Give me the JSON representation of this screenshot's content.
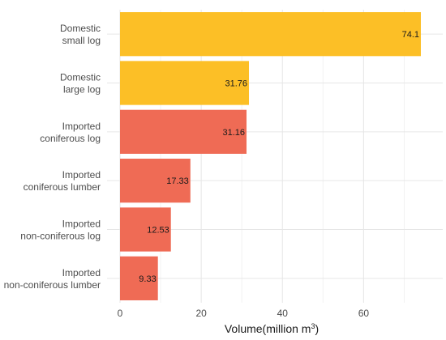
{
  "chart_data": {
    "type": "bar",
    "orientation": "horizontal",
    "categories": [
      [
        "Domestic",
        "small log"
      ],
      [
        "Domestic",
        "large log"
      ],
      [
        "Imported",
        "coniferous log"
      ],
      [
        "Imported",
        "coniferous lumber"
      ],
      [
        "Imported",
        "non-coniferous log"
      ],
      [
        "Imported",
        "non-coniferous lumber"
      ]
    ],
    "values": [
      74.1,
      31.76,
      31.16,
      17.33,
      12.53,
      9.33
    ],
    "value_labels": [
      "74.1",
      "31.76",
      "31.16",
      "17.33",
      "12.53",
      "9.33"
    ],
    "colors": [
      "#FCBF26",
      "#FCBF26",
      "#EF6B55",
      "#EF6B55",
      "#EF6B55",
      "#EF6B55"
    ],
    "xlabel": "Volume(million m",
    "xlabel_superscript": "3",
    "xlabel_close": ")",
    "xticks": [
      0,
      20,
      40,
      60
    ],
    "xlim": [
      0,
      77.8
    ],
    "grid": true,
    "legend": "none"
  }
}
